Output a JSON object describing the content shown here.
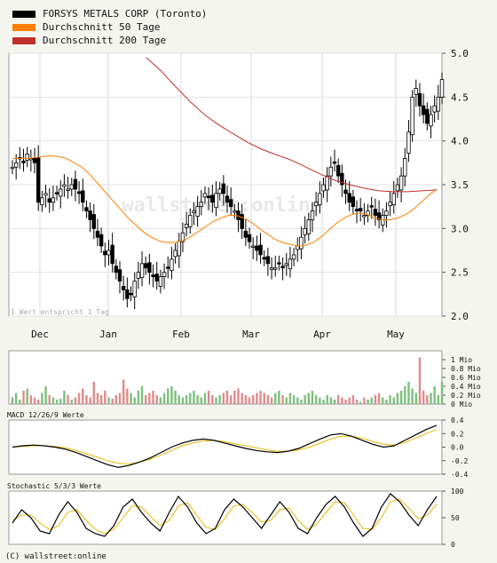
{
  "legend": [
    {
      "label": "FORSYS METALS CORP (Toronto)",
      "color": "#000000"
    },
    {
      "label": "Durchschnitt 50 Tage",
      "color": "#ff7f00"
    },
    {
      "label": "Durchschnitt 200 Tage",
      "color": "#c0302a"
    }
  ],
  "footer": "(C) wallstreet:online",
  "watermark": "wallstreet:online",
  "chart_data": {
    "main": {
      "type": "candlestick",
      "note": "1 Wert entspricht 1 Tag",
      "months": [
        "Dec",
        "Jan",
        "Feb",
        "Mar",
        "Apr",
        "May"
      ],
      "yticks": [
        "5.0",
        "4.5",
        "4.0",
        "3.5",
        "3.0",
        "2.5",
        "2.0"
      ],
      "ylim": [
        2.0,
        5.0
      ],
      "close": [
        3.7,
        3.75,
        3.8,
        3.75,
        3.85,
        3.8,
        3.75,
        3.3,
        3.35,
        3.4,
        3.3,
        3.35,
        3.4,
        3.45,
        3.5,
        3.45,
        3.5,
        3.45,
        3.4,
        3.3,
        3.2,
        3.1,
        3.0,
        2.9,
        2.8,
        2.7,
        2.75,
        2.6,
        2.5,
        2.4,
        2.3,
        2.2,
        2.25,
        2.4,
        2.5,
        2.6,
        2.55,
        2.5,
        2.45,
        2.4,
        2.45,
        2.5,
        2.55,
        2.65,
        2.75,
        2.85,
        2.95,
        3.05,
        3.15,
        3.2,
        3.25,
        3.3,
        3.4,
        3.35,
        3.3,
        3.4,
        3.45,
        3.4,
        3.3,
        3.25,
        3.2,
        3.1,
        3.0,
        2.9,
        2.85,
        2.8,
        2.75,
        2.7,
        2.65,
        2.6,
        2.55,
        2.55,
        2.6,
        2.55,
        2.6,
        2.65,
        2.7,
        2.8,
        2.9,
        3.0,
        3.1,
        3.2,
        3.3,
        3.4,
        3.5,
        3.6,
        3.7,
        3.75,
        3.6,
        3.5,
        3.4,
        3.3,
        3.25,
        3.2,
        3.2,
        3.15,
        3.2,
        3.25,
        3.15,
        3.1,
        3.15,
        3.2,
        3.3,
        3.4,
        3.5,
        3.6,
        3.8,
        4.1,
        4.5,
        4.6,
        4.4,
        4.3,
        4.2,
        4.3,
        4.4,
        4.5,
        4.7
      ],
      "ma50": [
        3.8,
        3.8,
        3.8,
        3.81,
        3.82,
        3.83,
        3.82,
        3.8,
        3.75,
        3.7,
        3.62,
        3.52,
        3.42,
        3.32,
        3.22,
        3.12,
        3.04,
        2.96,
        2.9,
        2.86,
        2.84,
        2.84,
        2.86,
        2.9,
        2.96,
        3.02,
        3.08,
        3.12,
        3.15,
        3.15,
        3.12,
        3.07,
        3.0,
        2.94,
        2.88,
        2.84,
        2.82,
        2.8,
        2.81,
        2.84,
        2.9,
        2.98,
        3.06,
        3.12,
        3.16,
        3.18,
        3.16,
        3.12,
        3.1,
        3.1,
        3.12,
        3.16,
        3.22,
        3.3,
        3.38,
        3.45
      ],
      "ma200": [
        4.95,
        4.8,
        4.62,
        4.45,
        4.3,
        4.18,
        4.08,
        3.98,
        3.9,
        3.84,
        3.78,
        3.7,
        3.62,
        3.55,
        3.5,
        3.46,
        3.43,
        3.42,
        3.42,
        3.43,
        3.44
      ]
    },
    "volume": {
      "type": "bar",
      "yticks": [
        "1 Mio",
        "0.8 Mio",
        "0.6 Mio",
        "0.4 Mio",
        "0.2 Mio",
        "0 Mio"
      ],
      "ylim": [
        0,
        1.2
      ],
      "values": [
        0.15,
        0.25,
        0.1,
        0.3,
        0.35,
        0.2,
        0.15,
        0.1,
        0.25,
        0.4,
        0.2,
        0.15,
        0.1,
        0.12,
        0.3,
        0.2,
        0.1,
        0.15,
        0.25,
        0.35,
        0.2,
        0.15,
        0.5,
        0.25,
        0.2,
        0.3,
        0.15,
        0.12,
        0.2,
        0.25,
        0.55,
        0.35,
        0.25,
        0.15,
        0.3,
        0.4,
        0.2,
        0.25,
        0.3,
        0.2,
        0.15,
        0.25,
        0.35,
        0.4,
        0.3,
        0.2,
        0.15,
        0.2,
        0.25,
        0.3,
        0.2,
        0.15,
        0.25,
        0.3,
        0.2,
        0.15,
        0.2,
        0.25,
        0.3,
        0.2,
        0.3,
        0.35,
        0.25,
        0.2,
        0.15,
        0.2,
        0.25,
        0.3,
        0.25,
        0.2,
        0.15,
        0.25,
        0.3,
        0.2,
        0.15,
        0.25,
        0.2,
        0.15,
        0.1,
        0.2,
        0.25,
        0.3,
        0.2,
        0.15,
        0.1,
        0.2,
        0.15,
        0.1,
        0.2,
        0.15,
        0.1,
        0.15,
        0.2,
        0.1,
        0.05,
        0.15,
        0.1,
        0.15,
        0.2,
        0.25,
        0.15,
        0.1,
        0.2,
        0.15,
        0.25,
        0.3,
        0.4,
        0.5,
        0.35,
        0.25,
        1.05,
        0.3,
        0.2,
        0.25,
        0.4,
        0.2,
        0.5
      ]
    },
    "macd": {
      "title": "MACD 12/26/9 Werte",
      "yticks": [
        "0.4",
        "0.2",
        "0.0",
        "-0.2",
        "-0.4"
      ],
      "ylim": [
        -0.4,
        0.4
      ],
      "macd": [
        0.0,
        0.02,
        0.03,
        0.02,
        0.0,
        -0.03,
        -0.08,
        -0.14,
        -0.2,
        -0.26,
        -0.3,
        -0.27,
        -0.22,
        -0.16,
        -0.08,
        0.0,
        0.06,
        0.1,
        0.12,
        0.1,
        0.06,
        0.02,
        -0.02,
        -0.05,
        -0.07,
        -0.08,
        -0.06,
        -0.02,
        0.05,
        0.12,
        0.18,
        0.2,
        0.16,
        0.1,
        0.04,
        0.0,
        0.02,
        0.1,
        0.18,
        0.26,
        0.32
      ],
      "signal": [
        0.0,
        0.01,
        0.02,
        0.02,
        0.01,
        -0.01,
        -0.05,
        -0.1,
        -0.15,
        -0.2,
        -0.24,
        -0.25,
        -0.22,
        -0.18,
        -0.12,
        -0.05,
        0.02,
        0.06,
        0.09,
        0.1,
        0.08,
        0.05,
        0.02,
        -0.01,
        -0.04,
        -0.06,
        -0.06,
        -0.04,
        0.0,
        0.06,
        0.12,
        0.16,
        0.16,
        0.13,
        0.08,
        0.04,
        0.03,
        0.07,
        0.13,
        0.2,
        0.26
      ]
    },
    "stochastic": {
      "title": "Stochastic 5/3/3 Werte",
      "yticks": [
        "100",
        "50",
        "0"
      ],
      "ylim": [
        0,
        100
      ],
      "k": [
        40,
        65,
        50,
        25,
        20,
        55,
        80,
        60,
        30,
        20,
        15,
        35,
        70,
        85,
        60,
        40,
        25,
        60,
        90,
        70,
        40,
        20,
        30,
        65,
        85,
        70,
        50,
        30,
        55,
        80,
        60,
        30,
        20,
        50,
        75,
        90,
        70,
        40,
        15,
        30,
        70,
        95,
        80,
        55,
        35,
        65,
        90
      ],
      "d": [
        45,
        55,
        55,
        40,
        28,
        35,
        60,
        65,
        45,
        28,
        20,
        28,
        50,
        72,
        70,
        52,
        35,
        45,
        72,
        78,
        55,
        32,
        28,
        48,
        72,
        75,
        60,
        42,
        45,
        65,
        68,
        45,
        28,
        38,
        60,
        80,
        78,
        55,
        30,
        28,
        50,
        80,
        85,
        68,
        48,
        55,
        75
      ]
    }
  }
}
